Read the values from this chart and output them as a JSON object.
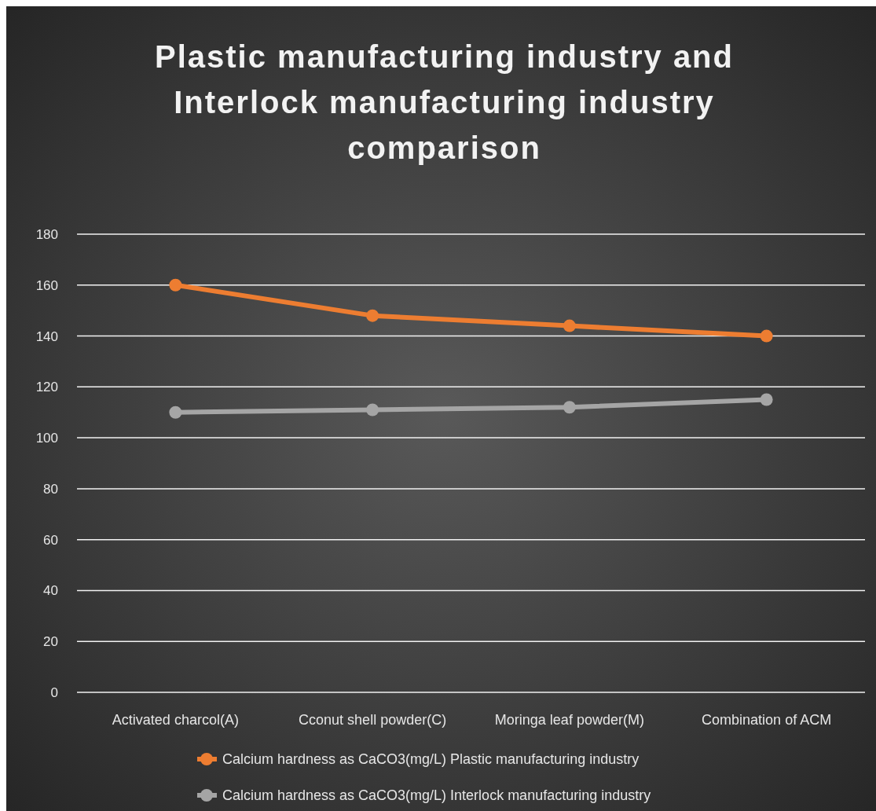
{
  "chart_data": {
    "type": "line",
    "title": "Plastic manufacturing industry and Interlock manufacturing industry comparison",
    "categories": [
      "Activated charcol(A)",
      "Cconut shell powder(C)",
      "Moringa leaf powder(M)",
      "Combination of ACM"
    ],
    "series": [
      {
        "name": "Calcium hardness as CaCO3(mg/L) Plastic manufacturing industry",
        "color": "#ed7d31",
        "values": [
          160,
          148,
          144,
          140
        ]
      },
      {
        "name": "Calcium hardness as CaCO3(mg/L) Interlock manufacturing industry",
        "color": "#a5a5a5",
        "values": [
          110,
          111,
          112,
          115
        ]
      }
    ],
    "ylim": [
      0,
      180
    ],
    "yticks": [
      0,
      20,
      40,
      60,
      80,
      100,
      120,
      140,
      160,
      180
    ],
    "grid": "y",
    "legend": "bottom",
    "marker": "circle",
    "line_style": "solid"
  }
}
